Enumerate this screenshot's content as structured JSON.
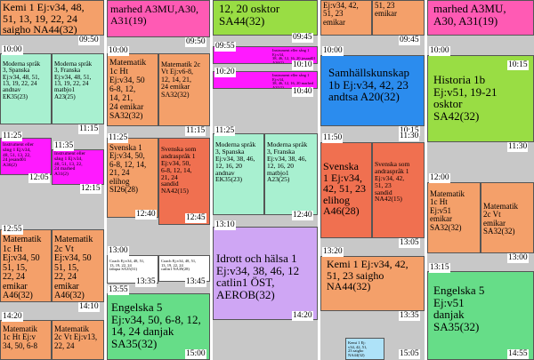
{
  "times": [
    {
      "id": "c0-0950",
      "label": "09:50"
    },
    {
      "id": "c0-1000",
      "label": "10:00"
    },
    {
      "id": "c0-1115",
      "label": "11:15"
    },
    {
      "id": "c0-1125",
      "label": "11:25"
    },
    {
      "id": "c0-1135",
      "label": "11:35"
    },
    {
      "id": "c0-1205",
      "label": "12:05"
    },
    {
      "id": "c0-1215",
      "label": "12:15"
    },
    {
      "id": "c0-1255",
      "label": "12:55"
    },
    {
      "id": "c0-1410",
      "label": "14:10"
    },
    {
      "id": "c0-1420",
      "label": "14:20"
    },
    {
      "id": "c1-0950",
      "label": "09:50"
    },
    {
      "id": "c1-1000",
      "label": "10:00"
    },
    {
      "id": "c1-1115",
      "label": "11:15"
    },
    {
      "id": "c1-1125",
      "label": "11:25"
    },
    {
      "id": "c1-1240",
      "label": "12:40"
    },
    {
      "id": "c1-1245",
      "label": "12:45"
    },
    {
      "id": "c1-1300",
      "label": "13:00"
    },
    {
      "id": "c1-1335",
      "label": "13:35"
    },
    {
      "id": "c1-1345",
      "label": "13:45"
    },
    {
      "id": "c1-1355",
      "label": "13:55"
    },
    {
      "id": "c1-1500",
      "label": "15:00"
    },
    {
      "id": "c2-0945",
      "label": "09:45"
    },
    {
      "id": "c2-0955",
      "label": "09:55"
    },
    {
      "id": "c2-1010",
      "label": "10:10"
    },
    {
      "id": "c2-1020",
      "label": "10:20"
    },
    {
      "id": "c2-1040",
      "label": "10:40"
    },
    {
      "id": "c2-1125",
      "label": "11:25"
    },
    {
      "id": "c2-1240",
      "label": "12:40"
    },
    {
      "id": "c2-1310",
      "label": "13:10"
    },
    {
      "id": "c2-1420",
      "label": "14:20"
    },
    {
      "id": "c3-0945",
      "label": "09:45"
    },
    {
      "id": "c3-1000",
      "label": "10:00"
    },
    {
      "id": "c3-1015",
      "label": "10:15"
    },
    {
      "id": "c3-1130",
      "label": "11:30"
    },
    {
      "id": "c3-1150",
      "label": "11:50"
    },
    {
      "id": "c3-1305",
      "label": "13:05"
    },
    {
      "id": "c3-1320",
      "label": "13:20"
    },
    {
      "id": "c3-1335",
      "label": "13:35"
    },
    {
      "id": "c3-1505",
      "label": "15:05"
    },
    {
      "id": "c4-1000",
      "label": "10:00"
    },
    {
      "id": "c4-1015",
      "label": "10:15"
    },
    {
      "id": "c4-1130",
      "label": "11:30"
    },
    {
      "id": "c4-1200",
      "label": "12:00"
    },
    {
      "id": "c4-1300",
      "label": "13:00"
    },
    {
      "id": "c4-1315",
      "label": "13:15"
    },
    {
      "id": "c4-1455",
      "label": "14:55"
    }
  ],
  "blocks": [
    {
      "id": "b-c0-kemi",
      "text": "Kemi 1 Ej:v34, 48,\n51, 13, 19, 22, 24\nsaigho  NA44(32)"
    },
    {
      "id": "b-c0-msp-sp",
      "text": "Moderna språk\n3, Spanska\nEj:v34, 48, 51,\n13, 19, 22, 24\nandnav\nEK35(23)"
    },
    {
      "id": "b-c0-msp-fr",
      "text": "Moderna språk\n3, Franska\nEj:v34, 48, 51,\n13, 19, 22, 24\nmatbjo1\nA23(25)"
    },
    {
      "id": "b-c0-instr1",
      "text": "Instrument eller\nsång 1 Ej:v34,\n48, 51, 13, 22,\n24  jesand01\nA36(2)"
    },
    {
      "id": "b-c0-instr2",
      "text": "Instrument eller\nsång 1 Ej:v34,\n48, 51, 13, 22,\n24  marhed\nA31(2)"
    },
    {
      "id": "b-c0-mat1c",
      "text": "Matematik\n1c  Ht\nEj:v34, 50\n51, 15,\n22, 24\nemikar\nA46(32)"
    },
    {
      "id": "b-c0-mat2c",
      "text": "Matematik\n2c  Vt\nEj:v34, 50\n51, 15,\n22, 24\nemikar\nA46(32)"
    },
    {
      "id": "b-c0-mat1c-b",
      "text": "Matematik\n1c Ht Ej:v\n34, 50, 6-8"
    },
    {
      "id": "b-c0-mat2c-b",
      "text": "Matematik\n2c Vt Ej:v13,\n22, 24"
    },
    {
      "id": "b-c1-marhed",
      "text": "marhed  A3MU,A30,\nA31(19)"
    },
    {
      "id": "b-c1-mat1c",
      "text": "Matematik\n1c  Ht\nEj:v34, 50\n6-8, 12,\n14, 21,\n24  emikar\nSA32(32)"
    },
    {
      "id": "b-c1-mat2c",
      "text": "Matematik 2c\nVt Ej:v6-8,\n12, 14, 21,\n24  emikar\nSA32(32)"
    },
    {
      "id": "b-c1-sv1",
      "text": "Svenska 1\nEj:v34, 50,\n6-8, 12, 14,\n21, 24\nelihog\nSI26(28)"
    },
    {
      "id": "b-c1-sva",
      "text": "Svenska som\nandraspråk 1\nEj:v34, 50,\n6-8, 12, 14,\n21, 24\nsandid\nNA42(15)"
    },
    {
      "id": "b-c1-coach1",
      "text": "Coach Ej:v34, 48, 51,\n13, 19, 22, 24\nfabqua  SA35(31)"
    },
    {
      "id": "b-c1-coach2",
      "text": "Coach Ej:v34, 48, 51,\n13, 19, 22, 24\ncatlin1  NA39(28)"
    },
    {
      "id": "b-c1-eng",
      "text": "Engelska 5\nEj:v34, 50, 6-8, 12,\n14, 24  danjak\nSA35(32)"
    },
    {
      "id": "b-c2-top",
      "text": "12, 20  osktor\nSA44(32)"
    },
    {
      "id": "b-c2-instr1",
      "text": "Instrument eller sång 1 Ej:v34,\n38, 46, 12, 16, 20  jesand01 A36(2)"
    },
    {
      "id": "b-c2-instr2",
      "text": "Instrument eller sång 1 Ej:v34,\n38, 46, 12, 16, 20  marhed  A31(2)"
    },
    {
      "id": "b-c2-msp-sp",
      "text": "Moderna språk\n3, Spanska\nEj:v34, 38, 46,\n12, 16, 20\nandnav\nEK35(23)"
    },
    {
      "id": "b-c2-msp-fr",
      "text": "Moderna språk\n3, Franska\nEj:v34, 38, 46,\n12, 16, 20\nmatbjo1\nA23(25)"
    },
    {
      "id": "b-c2-idrott",
      "text": "Idrott och hälsa 1\nEj:v34, 38, 46, 12\ncatlin1  ÖST,\nAEROB(32)"
    },
    {
      "id": "b-c3-kemi-top",
      "text": "Ej:v34, 42,\n51, 23\nemikar"
    },
    {
      "id": "b-c3-top2",
      "text": "51, 23\nemikar"
    },
    {
      "id": "b-c3-samh",
      "text": "Samhällskunskap\n1b  Ej:v34, 42, 23\nandtsa  A20(32)"
    },
    {
      "id": "b-c3-sv1",
      "text": "Svenska\n1  Ej:v34,\n42, 51, 23\nelihog\nA46(28)"
    },
    {
      "id": "b-c3-sva",
      "text": "Svenska som\nandraspråk 1\nEj:v34, 42,\n51, 23\nsandid\nNA42(15)"
    },
    {
      "id": "b-c3-kemi",
      "text": "Kemi 1  Ej:v34, 42,\n51, 23  saigho\nNA44(32)"
    },
    {
      "id": "b-c3-kemi-small",
      "text": "Kemi 1  Ej:\nv34, 42, 51,\n23  saigho\nNA44(32)"
    },
    {
      "id": "b-c4-marhed",
      "text": "marhed  A3MU,\nA30, A31(19)"
    },
    {
      "id": "b-c4-hist",
      "text": "Historia 1b\nEj:v51, 19-21\nosktor\nSA42(32)"
    },
    {
      "id": "b-c4-mat1c",
      "text": "Matematik\n1c  Ht\nEj:v51\nemikar\nSA32(32)"
    },
    {
      "id": "b-c4-mat2c",
      "text": "Matematik\n2c  Vt\nemikar\nSA32(32)"
    },
    {
      "id": "b-c4-eng",
      "text": "Engelska 5\nEj:v51\ndanjak\nSA35(32)"
    }
  ]
}
